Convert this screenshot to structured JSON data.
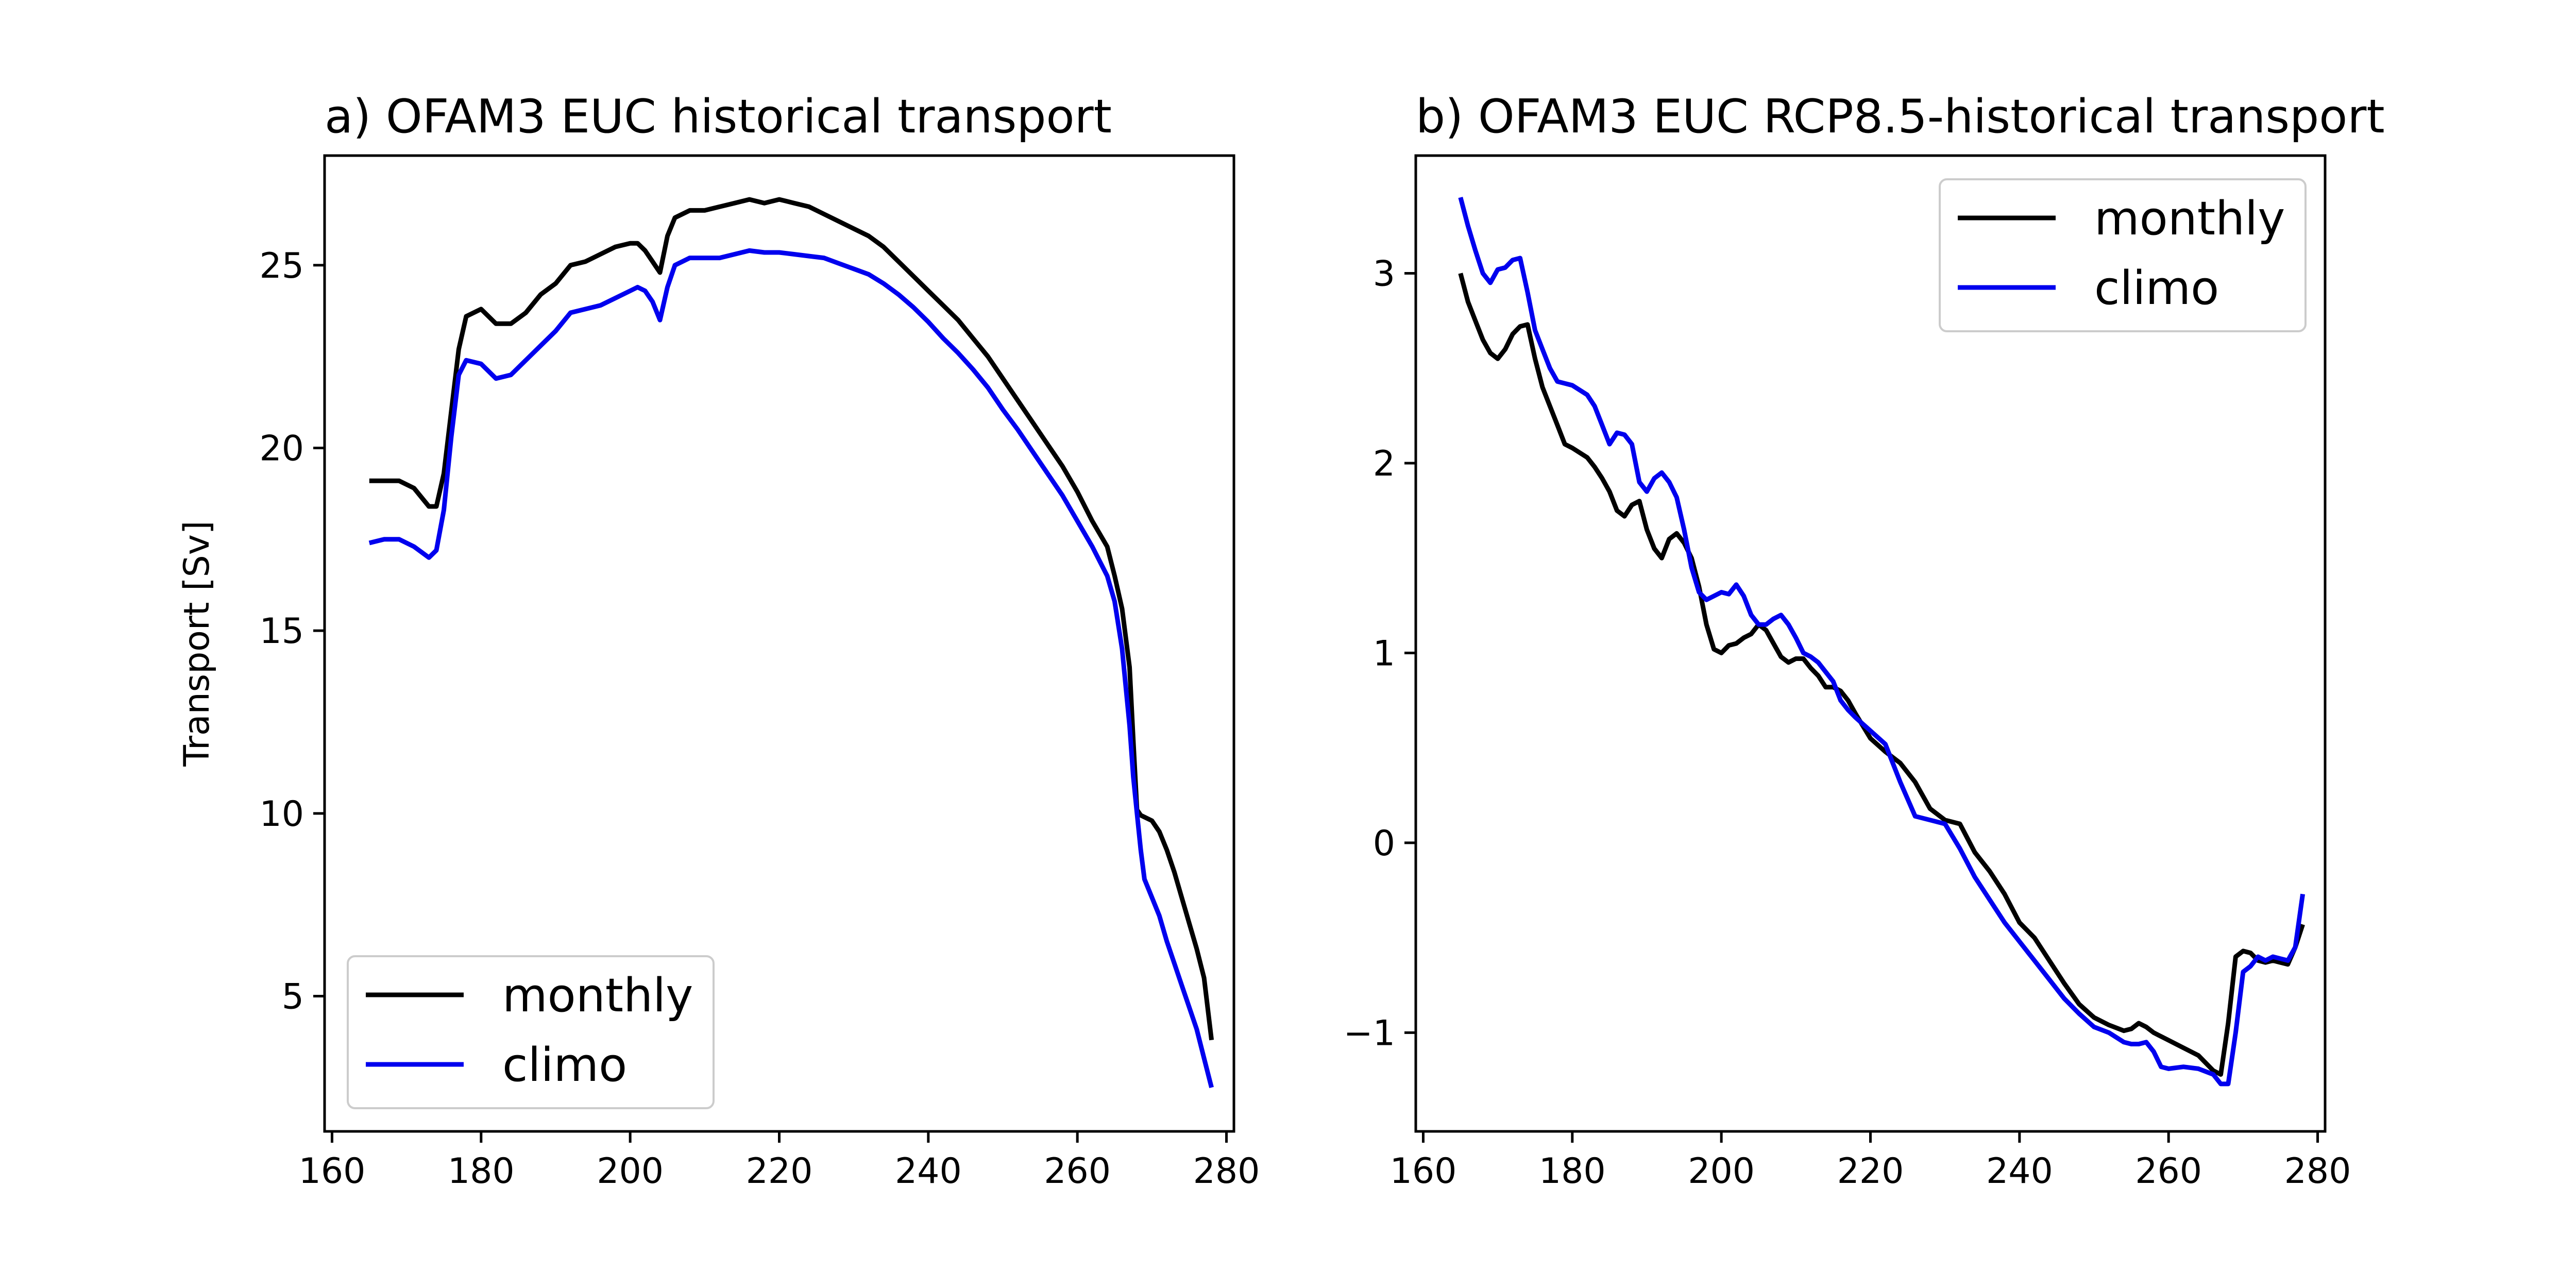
{
  "chart_data": [
    {
      "type": "line",
      "title": "a) OFAM3 EUC historical transport",
      "xlabel": "",
      "ylabel": "Transport [Sv]",
      "xlim": [
        159,
        281
      ],
      "ylim": [
        1.3,
        28.0
      ],
      "xticks": [
        160,
        180,
        200,
        220,
        240,
        260,
        280
      ],
      "yticks": [
        5,
        10,
        15,
        20,
        25
      ],
      "grid": false,
      "legend": {
        "position": "lower-left",
        "entries": [
          "monthly",
          "climo"
        ]
      },
      "series": [
        {
          "name": "monthly",
          "color": "#000000",
          "x": [
            165,
            167,
            169,
            171,
            173,
            174,
            175,
            176,
            177,
            178,
            180,
            182,
            184,
            186,
            188,
            190,
            192,
            194,
            196,
            198,
            200,
            201,
            202,
            203,
            204,
            205,
            206,
            208,
            210,
            212,
            214,
            216,
            218,
            220,
            222,
            224,
            226,
            228,
            230,
            232,
            234,
            236,
            238,
            240,
            242,
            244,
            246,
            248,
            250,
            252,
            254,
            256,
            258,
            260,
            262,
            264,
            265,
            266,
            267,
            267.5,
            268,
            268.5,
            269,
            270,
            271,
            272,
            273,
            274,
            275,
            276,
            277,
            278
          ],
          "y": [
            19.1,
            19.1,
            19.1,
            18.9,
            18.4,
            18.4,
            19.3,
            21.0,
            22.7,
            23.6,
            23.8,
            23.4,
            23.4,
            23.7,
            24.2,
            24.5,
            25.0,
            25.1,
            25.3,
            25.5,
            25.6,
            25.6,
            25.4,
            25.1,
            24.8,
            25.8,
            26.3,
            26.5,
            26.5,
            26.6,
            26.7,
            26.8,
            26.7,
            26.8,
            26.7,
            26.6,
            26.4,
            26.2,
            26.0,
            25.8,
            25.5,
            25.1,
            24.7,
            24.3,
            23.9,
            23.5,
            23.0,
            22.5,
            21.9,
            21.3,
            20.7,
            20.1,
            19.5,
            18.8,
            18.0,
            17.3,
            16.5,
            15.6,
            14.0,
            12.0,
            10.1,
            9.95,
            9.9,
            9.8,
            9.5,
            9.0,
            8.4,
            7.7,
            7.0,
            6.3,
            5.5,
            3.8
          ]
        },
        {
          "name": "climo",
          "color": "#0000ee",
          "x": [
            165,
            167,
            169,
            171,
            173,
            174,
            175,
            176,
            177,
            178,
            180,
            182,
            184,
            186,
            188,
            190,
            192,
            194,
            196,
            198,
            200,
            201,
            202,
            203,
            204,
            205,
            206,
            208,
            210,
            212,
            214,
            216,
            218,
            220,
            222,
            224,
            226,
            228,
            230,
            232,
            234,
            236,
            238,
            240,
            242,
            244,
            246,
            248,
            250,
            252,
            254,
            256,
            258,
            260,
            262,
            264,
            265,
            266,
            267,
            267.5,
            268,
            268.5,
            269,
            270,
            271,
            272,
            273,
            274,
            275,
            276,
            277,
            278
          ],
          "y": [
            17.4,
            17.5,
            17.5,
            17.3,
            17.0,
            17.2,
            18.3,
            20.3,
            22.0,
            22.4,
            22.3,
            21.9,
            22.0,
            22.4,
            22.8,
            23.2,
            23.7,
            23.8,
            23.9,
            24.1,
            24.3,
            24.4,
            24.3,
            24.0,
            23.5,
            24.4,
            25.0,
            25.2,
            25.2,
            25.2,
            25.3,
            25.4,
            25.35,
            25.35,
            25.3,
            25.25,
            25.2,
            25.05,
            24.9,
            24.75,
            24.5,
            24.2,
            23.85,
            23.45,
            23.0,
            22.6,
            22.15,
            21.65,
            21.05,
            20.5,
            19.9,
            19.3,
            18.7,
            18.0,
            17.3,
            16.5,
            15.8,
            14.5,
            12.4,
            11.0,
            10.0,
            9.0,
            8.2,
            7.7,
            7.2,
            6.5,
            5.9,
            5.3,
            4.7,
            4.1,
            3.3,
            2.5
          ]
        }
      ]
    },
    {
      "type": "line",
      "title": "b) OFAM3 EUC RCP8.5-historical transport",
      "xlabel": "",
      "ylabel": "",
      "xlim": [
        159,
        281
      ],
      "ylim": [
        -1.52,
        3.62
      ],
      "xticks": [
        160,
        180,
        200,
        220,
        240,
        260,
        280
      ],
      "yticks": [
        -1,
        0,
        1,
        2,
        3
      ],
      "grid": false,
      "legend": {
        "position": "upper-right",
        "entries": [
          "monthly",
          "climo"
        ]
      },
      "series": [
        {
          "name": "monthly",
          "color": "#000000",
          "x": [
            165,
            166,
            167,
            168,
            169,
            170,
            171,
            172,
            173,
            174,
            175,
            176,
            177,
            178,
            179,
            180,
            182,
            183,
            184,
            185,
            186,
            187,
            188,
            189,
            190,
            191,
            192,
            193,
            194,
            195,
            196,
            197,
            198,
            199,
            200,
            201,
            202,
            203,
            204,
            205,
            206,
            207,
            208,
            209,
            210,
            211,
            212,
            213,
            214,
            215,
            216,
            217,
            218,
            220,
            222,
            224,
            226,
            228,
            230,
            232,
            234,
            236,
            238,
            240,
            242,
            244,
            246,
            248,
            250,
            252,
            254,
            255,
            256,
            257,
            258,
            259,
            260,
            262,
            264,
            266,
            267,
            268,
            269,
            270,
            271,
            272,
            273,
            274,
            275,
            276,
            277,
            278
          ],
          "y": [
            3.0,
            2.85,
            2.75,
            2.65,
            2.58,
            2.55,
            2.6,
            2.68,
            2.72,
            2.73,
            2.55,
            2.4,
            2.3,
            2.2,
            2.1,
            2.08,
            2.03,
            1.98,
            1.92,
            1.85,
            1.75,
            1.72,
            1.78,
            1.8,
            1.65,
            1.55,
            1.5,
            1.6,
            1.63,
            1.58,
            1.5,
            1.35,
            1.15,
            1.02,
            1.0,
            1.04,
            1.05,
            1.08,
            1.1,
            1.15,
            1.12,
            1.05,
            0.98,
            0.95,
            0.97,
            0.97,
            0.92,
            0.88,
            0.82,
            0.82,
            0.8,
            0.75,
            0.68,
            0.55,
            0.48,
            0.42,
            0.32,
            0.18,
            0.12,
            0.1,
            -0.05,
            -0.15,
            -0.27,
            -0.42,
            -0.5,
            -0.62,
            -0.74,
            -0.85,
            -0.92,
            -0.96,
            -0.99,
            -0.98,
            -0.95,
            -0.97,
            -1.0,
            -1.02,
            -1.04,
            -1.08,
            -1.12,
            -1.2,
            -1.22,
            -0.95,
            -0.6,
            -0.57,
            -0.58,
            -0.62,
            -0.63,
            -0.62,
            -0.63,
            -0.64,
            -0.55,
            -0.43
          ]
        },
        {
          "name": "climo",
          "color": "#0000ee",
          "x": [
            165,
            166,
            167,
            168,
            169,
            170,
            171,
            172,
            173,
            174,
            175,
            176,
            177,
            178,
            179,
            180,
            182,
            183,
            184,
            185,
            186,
            187,
            188,
            189,
            190,
            191,
            192,
            193,
            194,
            195,
            196,
            197,
            198,
            199,
            200,
            201,
            202,
            203,
            204,
            205,
            206,
            207,
            208,
            209,
            210,
            211,
            212,
            213,
            214,
            215,
            216,
            217,
            218,
            220,
            222,
            224,
            226,
            228,
            230,
            232,
            234,
            236,
            238,
            240,
            242,
            244,
            246,
            248,
            250,
            252,
            254,
            255,
            256,
            257,
            258,
            259,
            260,
            262,
            264,
            266,
            267,
            268,
            269,
            270,
            271,
            272,
            273,
            274,
            275,
            276,
            277,
            278
          ],
          "y": [
            3.4,
            3.25,
            3.12,
            3.0,
            2.95,
            3.02,
            3.03,
            3.07,
            3.08,
            2.9,
            2.7,
            2.6,
            2.5,
            2.43,
            2.42,
            2.41,
            2.36,
            2.3,
            2.2,
            2.1,
            2.16,
            2.15,
            2.1,
            1.9,
            1.85,
            1.92,
            1.95,
            1.9,
            1.82,
            1.65,
            1.45,
            1.32,
            1.28,
            1.3,
            1.32,
            1.31,
            1.36,
            1.3,
            1.2,
            1.15,
            1.15,
            1.18,
            1.2,
            1.15,
            1.08,
            1.0,
            0.98,
            0.95,
            0.9,
            0.85,
            0.75,
            0.7,
            0.66,
            0.59,
            0.52,
            0.32,
            0.14,
            0.12,
            0.1,
            -0.03,
            -0.18,
            -0.3,
            -0.42,
            -0.52,
            -0.62,
            -0.72,
            -0.82,
            -0.9,
            -0.97,
            -1.0,
            -1.05,
            -1.06,
            -1.06,
            -1.05,
            -1.1,
            -1.18,
            -1.19,
            -1.18,
            -1.19,
            -1.22,
            -1.27,
            -1.27,
            -1.0,
            -0.68,
            -0.65,
            -0.6,
            -0.62,
            -0.6,
            -0.61,
            -0.62,
            -0.55,
            -0.27
          ]
        }
      ]
    }
  ]
}
